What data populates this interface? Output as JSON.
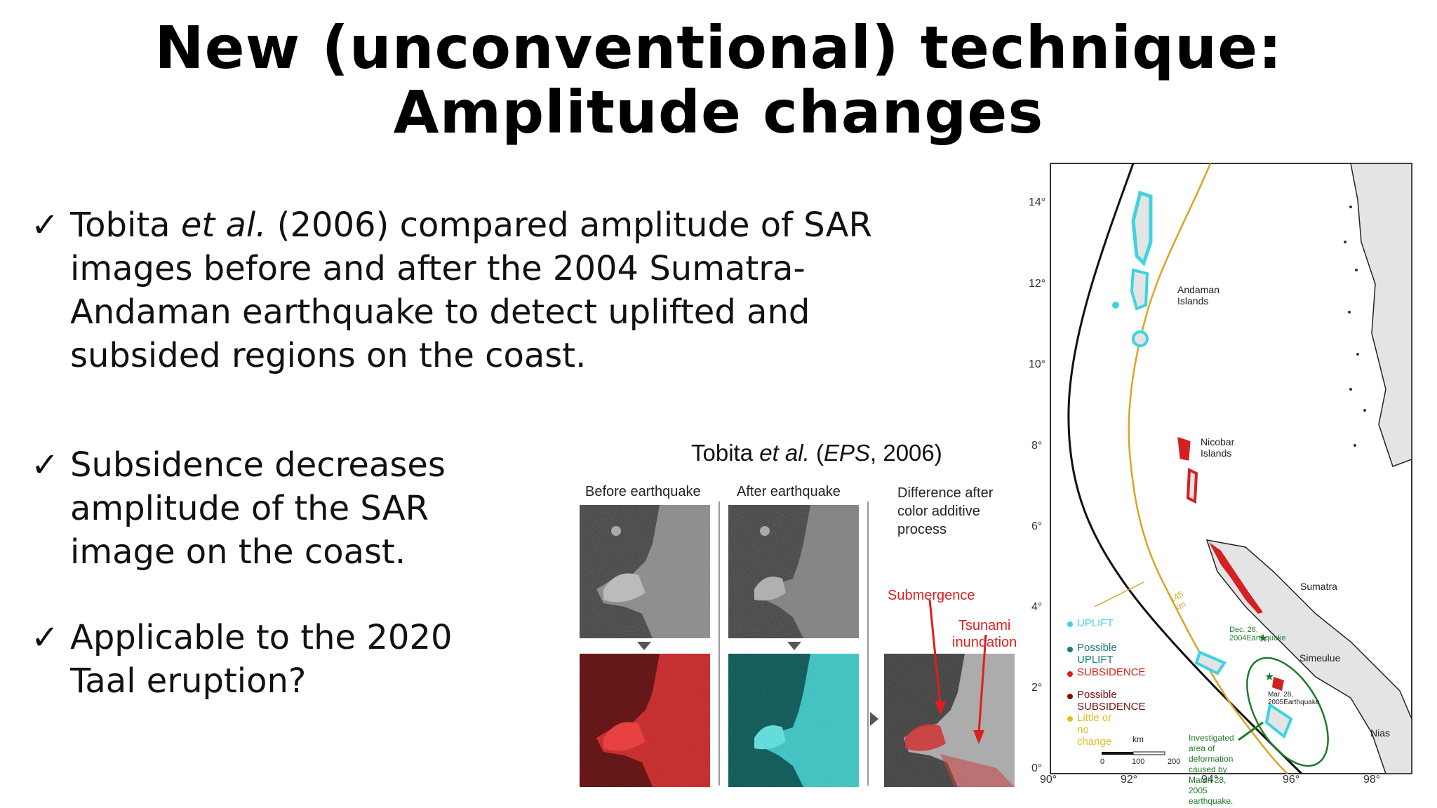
{
  "title": {
    "line1": "New (unconventional) technique:",
    "line2": "Amplitude changes"
  },
  "bullets": [
    {
      "check": "✓",
      "parts": [
        "Tobita ",
        "et al.",
        " (2006) compared amplitude of SAR"
      ],
      "lines": [
        "images before and after the 2004 Sumatra-",
        "Andaman earthquake to detect uplifted and",
        "subsided regions on the coast."
      ]
    },
    {
      "check": "✓",
      "lines": [
        "Subsidence decreases",
        "amplitude of the SAR",
        "image on the coast."
      ]
    },
    {
      "check": "✓",
      "lines": [
        "Applicable to the 2020",
        "Taal eruption?"
      ]
    }
  ],
  "citation": {
    "prefix": "Tobita ",
    "etal": "et al.",
    "open": " (",
    "journal": "EPS",
    "rest": ", 2006)"
  },
  "figure": {
    "panel_labels": {
      "before": "Before earthquake",
      "after": "After earthquake",
      "difference_line1": "Difference after",
      "difference_line2": "color additive",
      "difference_line3": "process"
    },
    "annotations": {
      "submergence": "Submergence",
      "tsunami_line1": "Tsunami",
      "tsunami_line2": "inundation"
    },
    "colors": {
      "red": "#d42020",
      "cyan": "#3ad0d0",
      "annotation": "#dd1f1f"
    }
  },
  "map": {
    "lat_labels": [
      "14°",
      "12°",
      "10°",
      "8°",
      "6°",
      "4°",
      "2°",
      "0°"
    ],
    "lon_labels": [
      "90°",
      "92°",
      "94°",
      "96°",
      "98°"
    ],
    "places": {
      "andaman": "Andaman Islands",
      "nicobar": "Nicobar Islands",
      "sumatra": "Sumatra",
      "simeulue": "Simeulue",
      "nias": "Nias"
    },
    "distance_label": "145 km",
    "eq_2004": "Dec. 26, 2004Earthquake",
    "eq_2005": "Mar. 28, 2005Earthquake",
    "investigated": [
      "Investigated area of",
      "deformation caused by",
      "March 28, 2005 earthquake."
    ],
    "scale": {
      "unit": "km",
      "ticks": [
        "0",
        "100",
        "200"
      ]
    },
    "legend": [
      {
        "label": "UPLIFT",
        "color": "#3dd4e0"
      },
      {
        "label": "Possible UPLIFT",
        "color": "#1a7a7a"
      },
      {
        "label": "SUBSIDENCE",
        "color": "#d42020"
      },
      {
        "label": "Possible SUBSIDENCE",
        "color": "#7a1010"
      },
      {
        "label": "Little or no change",
        "color": "#e0c020"
      }
    ],
    "colors": {
      "trench": "#111111",
      "front": "#d9a520",
      "green": "#1f7a2a",
      "land": "#e4e4e4"
    }
  }
}
